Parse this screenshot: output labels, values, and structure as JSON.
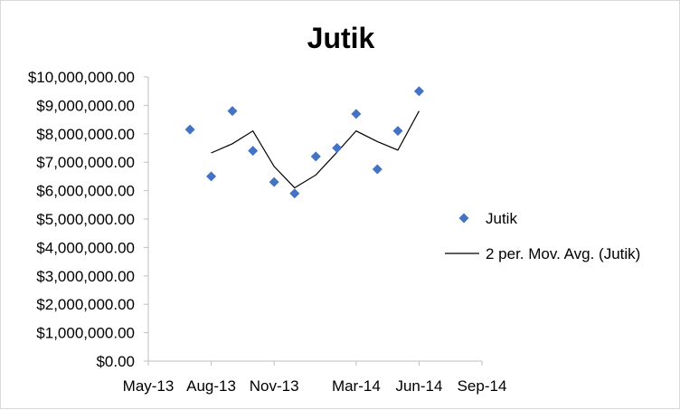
{
  "chart_data": {
    "type": "scatter",
    "title": "Jutik",
    "xlabel": "",
    "ylabel": "",
    "xlim": [
      "2013-05-01",
      "2014-09-01"
    ],
    "ylim": [
      0,
      10000000
    ],
    "x_tick_labels": [
      "May-13",
      "Aug-13",
      "Nov-13",
      "Mar-14",
      "Jun-14",
      "Sep-14"
    ],
    "x_tick_dates": [
      "2013-05-01",
      "2013-08-01",
      "2013-11-01",
      "2014-03-01",
      "2014-06-01",
      "2014-09-01"
    ],
    "y_tick_labels": [
      "$0.00",
      "$1,000,000.00",
      "$2,000,000.00",
      "$3,000,000.00",
      "$4,000,000.00",
      "$5,000,000.00",
      "$6,000,000.00",
      "$7,000,000.00",
      "$8,000,000.00",
      "$9,000,000.00",
      "$10,000,000.00"
    ],
    "y_tick_values": [
      0,
      1000000,
      2000000,
      3000000,
      4000000,
      5000000,
      6000000,
      7000000,
      8000000,
      9000000,
      10000000
    ],
    "series": [
      {
        "name": "Jutik",
        "marker": "diamond",
        "color": "#4472C4",
        "x": [
          "2013-07-01",
          "2013-08-01",
          "2013-09-01",
          "2013-10-01",
          "2013-11-01",
          "2013-12-01",
          "2014-01-01",
          "2014-02-01",
          "2014-03-01",
          "2014-04-01",
          "2014-05-01",
          "2014-06-01"
        ],
        "y": [
          8150000,
          6500000,
          8800000,
          7400000,
          6300000,
          5900000,
          7200000,
          7500000,
          8700000,
          6750000,
          8100000,
          9500000
        ]
      },
      {
        "name": "2 per. Mov. Avg. (Jutik)",
        "type": "line",
        "color": "#000000",
        "x": [
          "2013-08-01",
          "2013-09-01",
          "2013-10-01",
          "2013-11-01",
          "2013-12-01",
          "2014-01-01",
          "2014-02-01",
          "2014-03-01",
          "2014-04-01",
          "2014-05-01",
          "2014-06-01"
        ],
        "y": [
          7325000,
          7650000,
          8100000,
          6850000,
          6100000,
          6550000,
          7350000,
          8100000,
          7725000,
          7425000,
          8800000
        ]
      }
    ],
    "legend_position": "right",
    "grid": false
  }
}
